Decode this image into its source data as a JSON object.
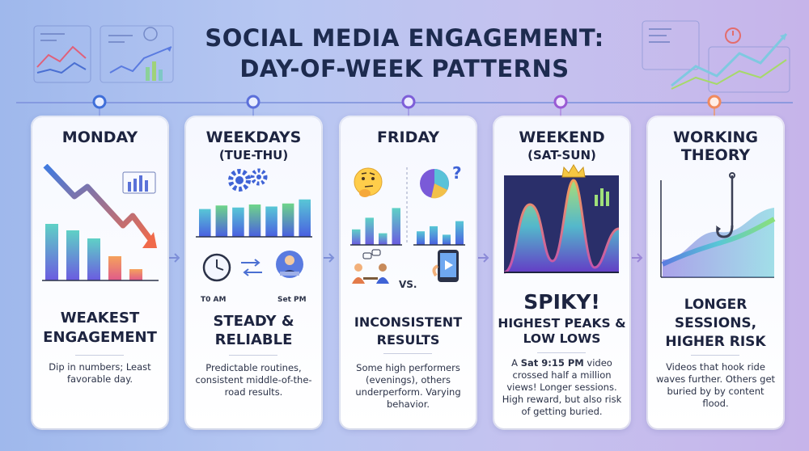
{
  "title": {
    "line1": "SOCIAL MEDIA ENGAGEMENT:",
    "line2": "DAY-OF-WEEK PATTERNS"
  },
  "cards": [
    {
      "heading": "MONDAY",
      "subheading": "",
      "headline": "WEAKEST ENGAGEMENT",
      "description": "Dip in numbers; Least favorable day."
    },
    {
      "heading": "WEEKDAYS",
      "subheading": "(TUE-THU)",
      "headline": "STEADY & RELIABLE",
      "description": "Predictable routines, consistent middle-of-the-road results.",
      "clock_label": "T0 AM",
      "person_label": "Set PM"
    },
    {
      "heading": "FRIDAY",
      "subheading": "",
      "headline": "INCONSISTENT RESULTS",
      "description": "Some high performers (evenings), others underperform. Varying behavior.",
      "vs_label": "VS."
    },
    {
      "heading": "WEEKEND",
      "subheading": "(SAT-SUN)",
      "headline_big": "SPIKY!",
      "headline": "HIGHEST PEAKS & LOW LOWS",
      "description_prefix": "A ",
      "description_bold": "Sat 9:15 PM",
      "description": " video crossed half a million views! Longer sessions. High reward, but also risk of getting buried."
    },
    {
      "heading": "WORKING",
      "subheading": "THEORY",
      "headline": "LONGER SESSIONS, HIGHER RISK",
      "description": "Videos that hook ride waves further. Others get buried by by content flood."
    }
  ],
  "colors": {
    "accent_blue": "#3f6fd9",
    "accent_purple": "#8a5cd6",
    "accent_orange": "#f08a5d",
    "text_dark": "#1d2440"
  },
  "chart_data": [
    {
      "type": "bar",
      "note": "Monday illustration (unlabeled, decreasing)",
      "values": [
        70,
        62,
        52,
        30,
        14
      ],
      "title": "",
      "xlabel": "",
      "ylabel": ""
    },
    {
      "type": "bar",
      "note": "Weekdays illustration (unlabeled, steady)",
      "values": [
        55,
        62,
        58,
        64,
        60,
        66,
        74
      ],
      "title": "",
      "xlabel": "",
      "ylabel": ""
    },
    {
      "type": "bar",
      "note": "Friday illustration left (unlabeled, varying)",
      "values": [
        40,
        70,
        30,
        95
      ],
      "title": "",
      "xlabel": "",
      "ylabel": ""
    },
    {
      "type": "bar",
      "note": "Friday illustration right (unlabeled)",
      "values": [
        40,
        55,
        30,
        70
      ],
      "title": "",
      "xlabel": "",
      "ylabel": ""
    }
  ]
}
